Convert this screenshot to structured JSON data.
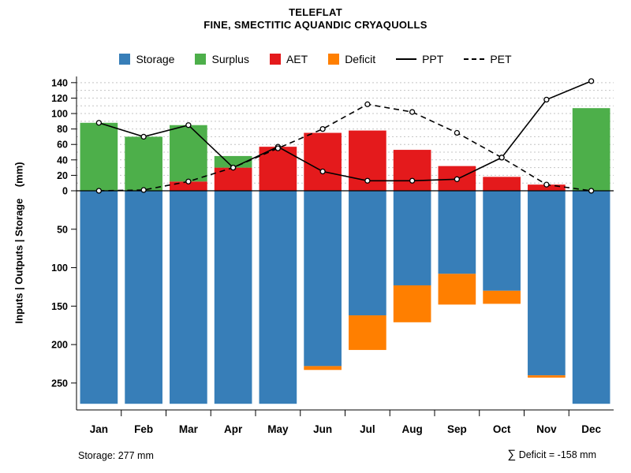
{
  "title": "TELEFLAT",
  "subtitle": "FINE, SMECTITIC AQUANDIC CRYAQUOLLS",
  "axes": {
    "y_label": "Inputs | Outputs | Storage    (mm)"
  },
  "legend": {
    "items": [
      {
        "label": "Storage",
        "color": "#377eb8",
        "type": "box"
      },
      {
        "label": "Surplus",
        "color": "#4daf4a",
        "type": "box"
      },
      {
        "label": "AET",
        "color": "#e41a1c",
        "type": "box"
      },
      {
        "label": "Deficit",
        "color": "#ff7f00",
        "type": "box"
      },
      {
        "label": "PPT",
        "color": "#000000",
        "type": "line-solid"
      },
      {
        "label": "PET",
        "color": "#000000",
        "type": "line-dashed"
      }
    ]
  },
  "annotations": {
    "storage": "Storage: 277 mm",
    "sum_symbol": "∑",
    "deficit": " Deficit = -158 mm"
  },
  "chart_data": {
    "type": "bar",
    "title": "TELEFLAT",
    "subtitle": "FINE, SMECTITIC AQUANDIC CRYAQUOLLS",
    "categories": [
      "Jan",
      "Feb",
      "Mar",
      "Apr",
      "May",
      "Jun",
      "Jul",
      "Aug",
      "Sep",
      "Oct",
      "Nov",
      "Dec"
    ],
    "series": [
      {
        "name": "Storage",
        "role": "bar-down",
        "color": "#377eb8",
        "values": [
          277,
          277,
          277,
          277,
          277,
          228,
          162,
          123,
          108,
          130,
          240,
          277
        ]
      },
      {
        "name": "Surplus",
        "role": "bar-up",
        "color": "#4daf4a",
        "values": [
          88,
          70,
          73,
          15,
          0,
          0,
          0,
          0,
          0,
          0,
          0,
          107
        ]
      },
      {
        "name": "AET",
        "role": "bar-up",
        "color": "#e41a1c",
        "values": [
          0,
          0,
          12,
          30,
          57,
          75,
          78,
          53,
          32,
          18,
          8,
          0
        ]
      },
      {
        "name": "Deficit",
        "role": "bar-down",
        "color": "#ff7f00",
        "values": [
          0,
          0,
          0,
          0,
          0,
          5,
          45,
          48,
          40,
          17,
          3,
          0
        ]
      },
      {
        "name": "PPT",
        "role": "line",
        "style": "solid",
        "color": "#000000",
        "values": [
          88,
          70,
          85,
          30,
          57,
          25,
          13,
          13,
          15,
          43,
          118,
          142
        ]
      },
      {
        "name": "PET",
        "role": "line",
        "style": "dashed",
        "color": "#000000",
        "values": [
          0,
          1,
          12,
          30,
          55,
          80,
          112,
          102,
          75,
          43,
          8,
          0
        ]
      }
    ],
    "ylabel": "Inputs | Outputs | Storage    (mm)",
    "y_upper_ticks": [
      0,
      20,
      40,
      60,
      80,
      100,
      120,
      140
    ],
    "y_lower_ticks": [
      50,
      100,
      150,
      200,
      250
    ],
    "upper_axis_range": [
      0,
      148
    ],
    "lower_axis_range": [
      0,
      285
    ],
    "grid": "dotted-horizontal-upper-region",
    "legend_position": "top",
    "footnotes": [
      "Storage: 277 mm",
      "∑ Deficit = -158 mm"
    ]
  }
}
